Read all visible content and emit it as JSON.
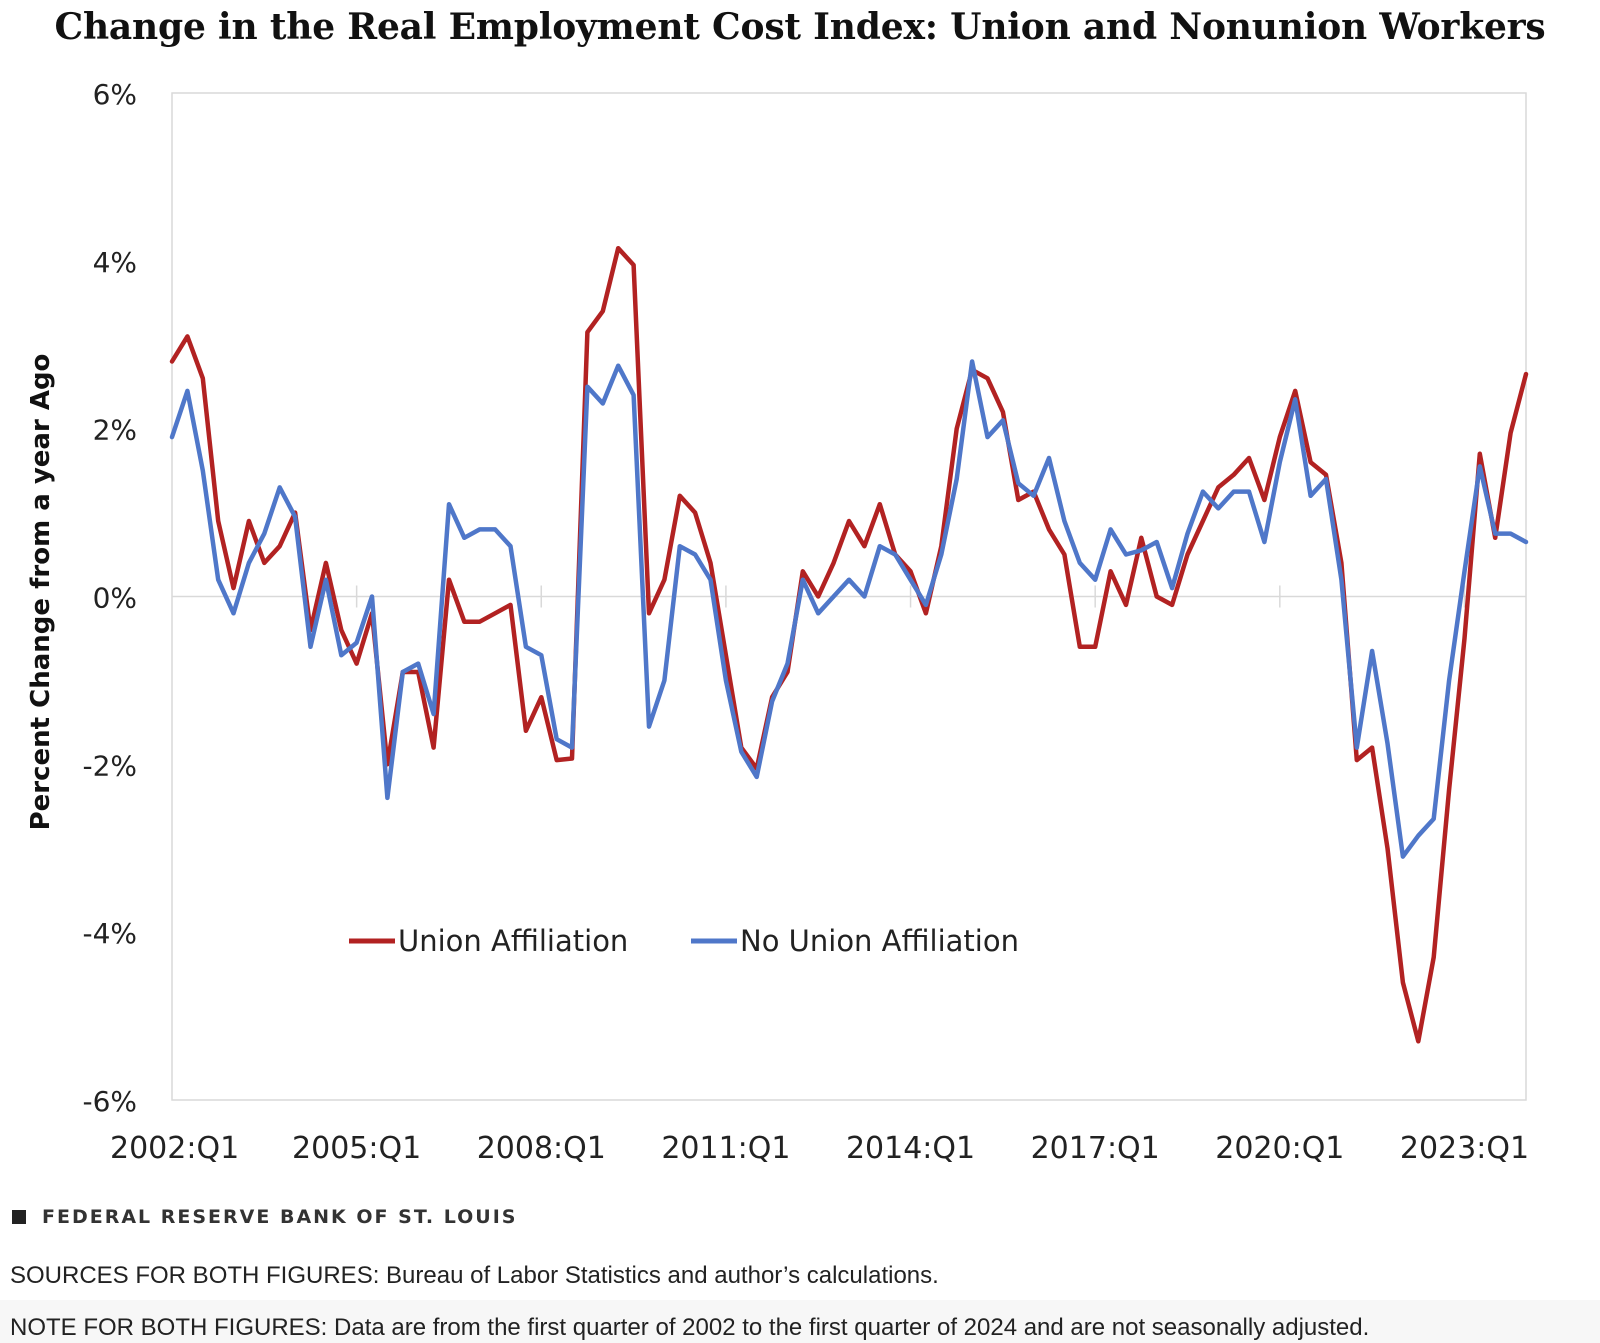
{
  "chart_data": {
    "type": "line",
    "title": "Change in the Real Employment Cost Index: Union and Nonunion Workers",
    "xlabel": "",
    "ylabel": "Percent Change from a year Ago",
    "ylim": [
      -6,
      6
    ],
    "yticks": [
      "6%",
      "4%",
      "2%",
      "0%",
      "-2%",
      "-4%",
      "-6%"
    ],
    "ytick_values": [
      6,
      4,
      2,
      0,
      -2,
      -4,
      -6
    ],
    "xticks": [
      "2002:Q1",
      "2005:Q1",
      "2008:Q1",
      "2011:Q1",
      "2014:Q1",
      "2017:Q1",
      "2020:Q1",
      "2023:Q1"
    ],
    "xtick_index": [
      0,
      12,
      24,
      36,
      48,
      60,
      72,
      84
    ],
    "grid": "horizontal at 0%",
    "legend": "lower-left, inside plot",
    "series": [
      {
        "name": "Union Affiliation",
        "color": "#b22222",
        "values": [
          2.8,
          3.1,
          2.6,
          0.9,
          0.1,
          0.9,
          0.4,
          0.6,
          1.0,
          -0.4,
          0.4,
          -0.4,
          -0.8,
          -0.2,
          -2.0,
          -0.9,
          -0.9,
          -1.8,
          0.2,
          -0.3,
          -0.3,
          -0.2,
          -0.1,
          -1.6,
          -1.2,
          -1.95,
          -1.93,
          3.15,
          3.4,
          4.15,
          3.95,
          -0.2,
          0.2,
          1.2,
          1.0,
          0.4,
          -0.7,
          -1.8,
          -2.05,
          -1.2,
          -0.9,
          0.3,
          0.0,
          0.4,
          0.9,
          0.6,
          1.1,
          0.5,
          0.3,
          -0.2,
          0.6,
          2.0,
          2.7,
          2.6,
          2.2,
          1.15,
          1.25,
          0.8,
          0.5,
          -0.6,
          -0.6,
          0.3,
          -0.1,
          0.7,
          0.0,
          -0.1,
          0.5,
          0.9,
          1.3,
          1.45,
          1.65,
          1.15,
          1.9,
          2.45,
          1.6,
          1.45,
          0.4,
          -1.95,
          -1.8,
          -3.0,
          -4.6,
          -5.3,
          -4.3,
          -2.3,
          -0.5,
          1.7,
          0.7,
          1.95,
          2.65
        ]
      },
      {
        "name": "No Union Affiliation",
        "color": "#4f77c9",
        "values": [
          1.9,
          2.45,
          1.5,
          0.2,
          -0.2,
          0.4,
          0.75,
          1.3,
          0.95,
          -0.6,
          0.2,
          -0.7,
          -0.55,
          0.0,
          -2.4,
          -0.9,
          -0.8,
          -1.4,
          1.1,
          0.7,
          0.8,
          0.8,
          0.6,
          -0.6,
          -0.7,
          -1.7,
          -1.8,
          2.5,
          2.3,
          2.75,
          2.4,
          -1.55,
          -1.0,
          0.6,
          0.5,
          0.2,
          -1.0,
          -1.85,
          -2.15,
          -1.25,
          -0.8,
          0.2,
          -0.2,
          0.0,
          0.2,
          0.0,
          0.6,
          0.5,
          0.2,
          -0.1,
          0.5,
          1.4,
          2.8,
          1.9,
          2.1,
          1.35,
          1.2,
          1.65,
          0.9,
          0.4,
          0.2,
          0.8,
          0.5,
          0.55,
          0.65,
          0.1,
          0.75,
          1.25,
          1.05,
          1.25,
          1.25,
          0.65,
          1.6,
          2.35,
          1.2,
          1.4,
          0.2,
          -1.8,
          -0.65,
          -1.75,
          -3.1,
          -2.85,
          -2.65,
          -1.0,
          0.3,
          1.55,
          0.75,
          0.75,
          0.65
        ]
      }
    ]
  },
  "brand": "FEDERAL RESERVE BANK OF ST. LOUIS",
  "sources": "SOURCES FOR BOTH FIGURES: Bureau of Labor Statistics and author’s calculations.",
  "note": "NOTE FOR BOTH FIGURES: Data are from the first quarter of 2002 to the first quarter of 2024 and are not seasonally adjusted."
}
